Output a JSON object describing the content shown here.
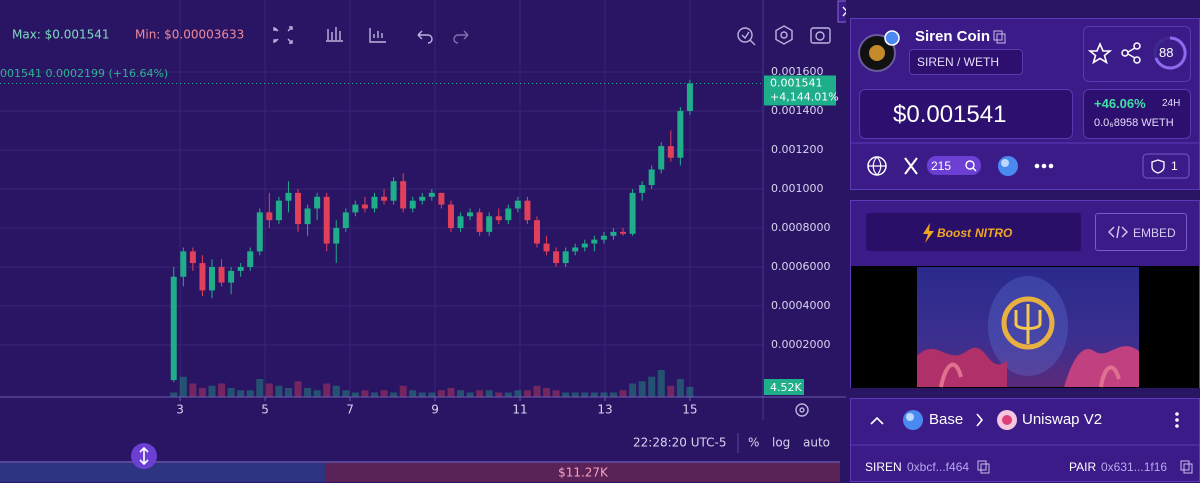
{
  "toolbar": {
    "max": "Max: $0.001541",
    "min": "Min: $0.00003633",
    "legend": "001541 0.0002199 (+16.64%)"
  },
  "chart_data": {
    "type": "candlestick",
    "x": [
      2.85,
      3.075,
      3.3,
      3.525,
      3.75,
      3.975,
      4.2,
      4.425,
      4.65,
      4.875,
      5.1,
      5.325,
      5.55,
      5.775,
      6,
      6.225,
      6.45,
      6.675,
      6.9,
      7.125,
      7.35,
      7.575,
      7.8,
      8.025,
      8.25,
      8.475,
      8.7,
      8.925,
      9.15,
      9.375,
      9.6,
      9.825,
      10.05,
      10.275,
      10.5,
      10.725,
      10.95,
      11.175,
      11.4,
      11.625,
      11.85,
      12.075,
      12.3,
      12.525,
      12.75,
      12.975,
      13.2,
      13.425,
      13.65,
      13.875,
      14.1,
      14.325,
      14.55,
      14.775,
      15.0
    ],
    "open": [
      2e-05,
      0.00055,
      0.00068,
      0.00062,
      0.00048,
      0.0006,
      0.00052,
      0.00058,
      0.0006,
      0.00068,
      0.00088,
      0.00084,
      0.00094,
      0.00098,
      0.00082,
      0.0009,
      0.00096,
      0.00072,
      0.0008,
      0.00088,
      0.00092,
      0.0009,
      0.00096,
      0.00094,
      0.00104,
      0.0009,
      0.00094,
      0.00096,
      0.00098,
      0.00092,
      0.0008,
      0.00086,
      0.00088,
      0.00078,
      0.00086,
      0.00084,
      0.0009,
      0.00094,
      0.00084,
      0.00072,
      0.00068,
      0.00062,
      0.00068,
      0.0007,
      0.00072,
      0.00074,
      0.00076,
      0.00078,
      0.00077,
      0.00098,
      0.00102,
      0.0011,
      0.00122,
      0.00116,
      0.0014
    ],
    "high": [
      0.0006,
      0.0007,
      0.0007,
      0.00066,
      0.00064,
      0.00064,
      0.0006,
      0.00062,
      0.0007,
      0.0009,
      0.00098,
      0.00096,
      0.00104,
      0.001,
      0.00092,
      0.00098,
      0.00098,
      0.00084,
      0.0009,
      0.00094,
      0.00096,
      0.00098,
      0.001,
      0.00106,
      0.00108,
      0.00096,
      0.00098,
      0.001,
      0.00098,
      0.00094,
      0.00088,
      0.0009,
      0.0009,
      0.00088,
      0.0009,
      0.00092,
      0.00096,
      0.00096,
      0.00086,
      0.00076,
      0.0007,
      0.0007,
      0.00072,
      0.00074,
      0.00076,
      0.00078,
      0.0008,
      0.0008,
      0.001,
      0.00104,
      0.00112,
      0.00124,
      0.0013,
      0.00142,
      0.00156
    ],
    "low": [
      1e-05,
      0.0005,
      0.00058,
      0.00045,
      0.00044,
      0.0005,
      0.00046,
      0.00055,
      0.00058,
      0.00066,
      0.0008,
      0.00082,
      0.00088,
      0.00078,
      0.00076,
      0.00084,
      0.00068,
      0.00062,
      0.00078,
      0.00086,
      0.00088,
      0.00088,
      0.00092,
      0.00092,
      0.00088,
      0.00088,
      0.00092,
      0.00094,
      0.0009,
      0.00078,
      0.00078,
      0.00084,
      0.00076,
      0.00076,
      0.00082,
      0.00082,
      0.00088,
      0.00082,
      0.0007,
      0.00066,
      0.0006,
      0.0006,
      0.00066,
      0.00068,
      0.00068,
      0.00072,
      0.00074,
      0.00076,
      0.00076,
      0.00094,
      0.001,
      0.00108,
      0.00114,
      0.00112,
      0.00138
    ],
    "close": [
      0.00055,
      0.00068,
      0.00062,
      0.00048,
      0.0006,
      0.00052,
      0.00058,
      0.0006,
      0.00068,
      0.00088,
      0.00084,
      0.00094,
      0.00098,
      0.00082,
      0.0009,
      0.00096,
      0.00072,
      0.0008,
      0.00088,
      0.00092,
      0.0009,
      0.00096,
      0.00094,
      0.00104,
      0.0009,
      0.00094,
      0.00096,
      0.00098,
      0.00092,
      0.0008,
      0.00086,
      0.00088,
      0.00078,
      0.00086,
      0.00084,
      0.0009,
      0.00094,
      0.00084,
      0.00072,
      0.00068,
      0.00062,
      0.00068,
      0.0007,
      0.00072,
      0.00074,
      0.00076,
      0.00078,
      0.00077,
      0.00098,
      0.00102,
      0.0011,
      0.00122,
      0.00116,
      0.0014,
      0.001541
    ],
    "volume": [
      2,
      9,
      6,
      4,
      5,
      6,
      4,
      3,
      3,
      8,
      6,
      5,
      4,
      7,
      4,
      3,
      6,
      5,
      3,
      2,
      3,
      2,
      3,
      2,
      5,
      3,
      2,
      2,
      3,
      4,
      3,
      2,
      3,
      3,
      2,
      2,
      3,
      3,
      5,
      4,
      3,
      2,
      2,
      2,
      2,
      2,
      2,
      3,
      6,
      7,
      9,
      12,
      5,
      8,
      4.52
    ],
    "volume_label": "4.52K",
    "change_label": "+4,144.01%",
    "colors": {
      "up": "#1fae8a",
      "down": "#e0405a"
    },
    "xlim": [
      -1.24,
      16.72
    ],
    "xticks": [
      3,
      5,
      7,
      9,
      11,
      13,
      15
    ],
    "ylim": [
      -6.67e-05,
      0.001969
    ],
    "yticks": [
      {
        "value": 0.0002,
        "label": "0.0002000"
      },
      {
        "value": 0.0004,
        "label": "0.0004000"
      },
      {
        "value": 0.0006,
        "label": "0.0006000"
      },
      {
        "value": 0.0008,
        "label": "0.0008000"
      },
      {
        "value": 0.001,
        "label": "0.001000"
      },
      {
        "value": 0.0012,
        "label": "0.001200"
      },
      {
        "value": 0.0014,
        "label": "0.001400"
      },
      {
        "value": 0.0016,
        "label": "0.001600"
      }
    ],
    "vlim": [
      0,
      60
    ],
    "grid": true
  },
  "footer": {
    "time": "22:28:20 UTC-5",
    "percent": "%",
    "log": "log",
    "auto": "auto",
    "liquidity": "$11.27K"
  },
  "panel": {
    "name": "Siren Coin",
    "pair": "SIREN / WETH",
    "score": "88",
    "price": "$0.001541",
    "change": "+46.06%",
    "period": "24H",
    "price_native": "0.0₆8958 WETH",
    "x_count": "215",
    "alerts": "1",
    "boost": "Boost",
    "nitro": "NITRO",
    "embed": "EMBED",
    "chain": "Base",
    "dex": "Uniswap V2",
    "token_label": "SIREN",
    "token_addr": "0xbcf...f464",
    "pair_label": "PAIR",
    "pair_addr": "0x631...1f16"
  }
}
